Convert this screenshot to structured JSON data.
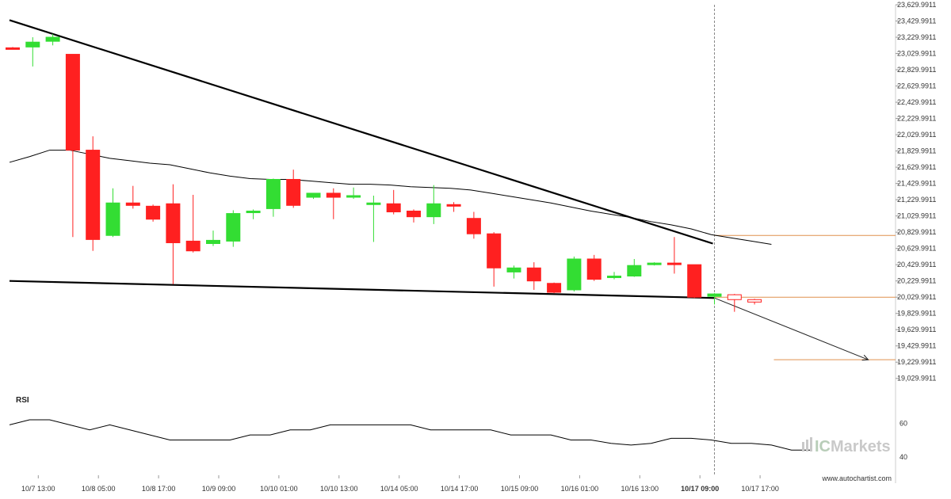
{
  "colors": {
    "up": "#33dd33",
    "down": "#ff2020",
    "trendline": "#000000",
    "level": "#e0904f",
    "guide": "#888888",
    "grid": "#cccccc"
  },
  "watermark": {
    "prefix": "IC",
    "suffix": "Markets"
  },
  "site": "www.autochartist.com",
  "chart_data": [
    {
      "type": "candlestick",
      "ylim": [
        18929.9911,
        23629.9911
      ],
      "y_ticks": [
        "23,629.9911",
        "23,429.9911",
        "23,229.9911",
        "23,029.9911",
        "22,829.9911",
        "22,629.9911",
        "22,429.9911",
        "22,229.9911",
        "22,029.9911",
        "21,829.9911",
        "21,629.9911",
        "21,429.9911",
        "21,229.9911",
        "21,029.9911",
        "20,829.9911",
        "20,629.9911",
        "20,429.9911",
        "20,229.9911",
        "20,029.9911",
        "19,829.9911",
        "19,629.9911",
        "19,429.9911",
        "19,229.9911",
        "19,029.9911"
      ],
      "x_ticks": [
        "10/7 13:00",
        "10/8 05:00",
        "10/8 17:00",
        "10/9 09:00",
        "10/10 01:00",
        "10/10 13:00",
        "10/14 05:00",
        "10/14 17:00",
        "10/15 09:00",
        "10/16 01:00",
        "10/16 13:00",
        "10/17 09:00",
        "10/17 17:00"
      ],
      "highlighted_x_tick": "10/17 09:00",
      "candles": [
        {
          "o": 23100,
          "h": 23110,
          "l": 23090,
          "c": 23090
        },
        {
          "o": 23110,
          "h": 23230,
          "l": 22870,
          "c": 23170
        },
        {
          "o": 23180,
          "h": 23270,
          "l": 23130,
          "c": 23230
        },
        {
          "o": 23020,
          "h": 23020,
          "l": 20770,
          "c": 21840
        },
        {
          "o": 21840,
          "h": 22010,
          "l": 20600,
          "c": 20740
        },
        {
          "o": 20790,
          "h": 21370,
          "l": 20770,
          "c": 21190
        },
        {
          "o": 21190,
          "h": 21400,
          "l": 21120,
          "c": 21160
        },
        {
          "o": 21150,
          "h": 21170,
          "l": 20960,
          "c": 20990
        },
        {
          "o": 21180,
          "h": 21420,
          "l": 20190,
          "c": 20700
        },
        {
          "o": 20720,
          "h": 21290,
          "l": 20580,
          "c": 20600
        },
        {
          "o": 20690,
          "h": 20850,
          "l": 20660,
          "c": 20730
        },
        {
          "o": 20720,
          "h": 21100,
          "l": 20650,
          "c": 21060
        },
        {
          "o": 21070,
          "h": 21110,
          "l": 20990,
          "c": 21090
        },
        {
          "o": 21120,
          "h": 21490,
          "l": 21020,
          "c": 21480
        },
        {
          "o": 21480,
          "h": 21600,
          "l": 21130,
          "c": 21160
        },
        {
          "o": 21260,
          "h": 21300,
          "l": 21240,
          "c": 21310
        },
        {
          "o": 21310,
          "h": 21370,
          "l": 20990,
          "c": 21260
        },
        {
          "o": 21270,
          "h": 21380,
          "l": 21240,
          "c": 21280
        },
        {
          "o": 21170,
          "h": 21280,
          "l": 20710,
          "c": 21190
        },
        {
          "o": 21180,
          "h": 21350,
          "l": 21050,
          "c": 21080
        },
        {
          "o": 21090,
          "h": 21110,
          "l": 20950,
          "c": 21020
        },
        {
          "o": 21020,
          "h": 21410,
          "l": 20930,
          "c": 21180
        },
        {
          "o": 21170,
          "h": 21200,
          "l": 21080,
          "c": 21150
        },
        {
          "o": 21000,
          "h": 21080,
          "l": 20750,
          "c": 20810
        },
        {
          "o": 20810,
          "h": 20830,
          "l": 20160,
          "c": 20390
        },
        {
          "o": 20340,
          "h": 20420,
          "l": 20260,
          "c": 20390
        },
        {
          "o": 20390,
          "h": 20460,
          "l": 20120,
          "c": 20230
        },
        {
          "o": 20200,
          "h": 20210,
          "l": 20080,
          "c": 20090
        },
        {
          "o": 20120,
          "h": 20530,
          "l": 20100,
          "c": 20500
        },
        {
          "o": 20500,
          "h": 20550,
          "l": 20230,
          "c": 20250
        },
        {
          "o": 20280,
          "h": 20340,
          "l": 20250,
          "c": 20290
        },
        {
          "o": 20290,
          "h": 20500,
          "l": 20280,
          "c": 20420
        },
        {
          "o": 20430,
          "h": 20460,
          "l": 20420,
          "c": 20450
        },
        {
          "o": 20450,
          "h": 20770,
          "l": 20320,
          "c": 20440
        },
        {
          "o": 20430,
          "h": 20430,
          "l": 20020,
          "c": 20030
        },
        {
          "o": 20040,
          "h": 20080,
          "l": 19940,
          "c": 20070
        },
        {
          "o": 20060,
          "h": 20070,
          "l": 19850,
          "c": 20000
        },
        {
          "o": 20000,
          "h": 20010,
          "l": 19940,
          "c": 19970
        }
      ],
      "moving_average": [
        21690,
        21760,
        21840,
        21840,
        21790,
        21740,
        21710,
        21680,
        21660,
        21610,
        21560,
        21520,
        21490,
        21480,
        21480,
        21460,
        21440,
        21420,
        21420,
        21410,
        21390,
        21380,
        21370,
        21350,
        21310,
        21270,
        21230,
        21190,
        21140,
        21090,
        21050,
        21010,
        20960,
        20920,
        20870,
        20800,
        20760,
        20720,
        20680
      ],
      "annotations": {
        "upper_trendline": [
          [
            0,
            23440
          ],
          [
            35,
            20690
          ]
        ],
        "lower_trendline": [
          [
            0,
            20230
          ],
          [
            35,
            20020
          ]
        ],
        "projection": [
          [
            35,
            20020
          ],
          [
            42,
            19260
          ]
        ],
        "target_level": 19260,
        "breakout_level": 20030,
        "upper_level": 20790,
        "breakout_candle_index": 35
      }
    },
    {
      "type": "line",
      "title": "RSI",
      "ylim": [
        30,
        70
      ],
      "y_ticks": [
        "60",
        "40"
      ],
      "values": [
        59,
        62,
        62,
        59,
        56,
        59,
        56,
        53,
        50,
        50,
        50,
        50,
        53,
        53,
        56,
        56,
        59,
        59,
        59,
        59,
        59,
        56,
        56,
        56,
        56,
        53,
        53,
        53,
        50,
        50,
        48,
        47,
        48,
        51,
        51,
        50,
        48,
        48,
        47,
        44,
        44
      ]
    }
  ]
}
